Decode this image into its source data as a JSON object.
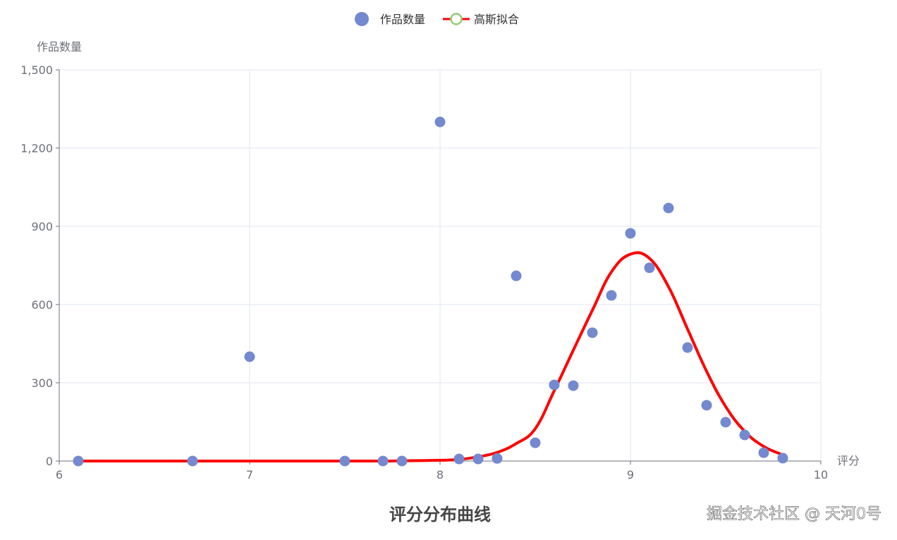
{
  "chart_data": {
    "type": "scatter",
    "title": "评分分布曲线",
    "xlabel": "评分",
    "ylabel": "作品数量",
    "xlim": [
      6,
      10
    ],
    "ylim": [
      0,
      1500
    ],
    "x_ticks": [
      "6",
      "7",
      "8",
      "9",
      "10"
    ],
    "y_ticks": [
      "0",
      "300",
      "600",
      "900",
      "1,200",
      "1,500"
    ],
    "grid": true,
    "legend_position": "top-center",
    "series": [
      {
        "name": "作品数量",
        "type": "scatter",
        "color": "#7489cf",
        "x": [
          6.1,
          6.7,
          7.0,
          7.5,
          7.7,
          7.8,
          8.0,
          8.1,
          8.2,
          8.3,
          8.4,
          8.5,
          8.6,
          8.7,
          8.8,
          8.9,
          9.0,
          9.1,
          9.2,
          9.3,
          9.4,
          9.5,
          9.6,
          9.7,
          9.8
        ],
        "y": [
          0,
          0,
          400,
          0,
          0,
          0,
          1300,
          8,
          8,
          10,
          710,
          70,
          292,
          289,
          492,
          635,
          873,
          741,
          970,
          435,
          214,
          149,
          100,
          32,
          11
        ]
      },
      {
        "name": "高斯拟合",
        "type": "line",
        "color": "#ff0000",
        "marker_color": "#91cc75",
        "x": [
          6.1,
          6.7,
          7.0,
          7.5,
          7.7,
          7.8,
          8.0,
          8.1,
          8.2,
          8.3,
          8.4,
          8.5,
          8.6,
          8.7,
          8.8,
          8.9,
          9.0,
          9.1,
          9.2,
          9.3,
          9.4,
          9.5,
          9.6,
          9.7,
          9.8
        ],
        "y": [
          0,
          0,
          0,
          0,
          0,
          1,
          3,
          6,
          16,
          33,
          67,
          124,
          270,
          425,
          578,
          725,
          793,
          777,
          668,
          506,
          344,
          209,
          114,
          56,
          24
        ]
      }
    ]
  },
  "watermark": "掘金技术社区 @ 天河0号"
}
